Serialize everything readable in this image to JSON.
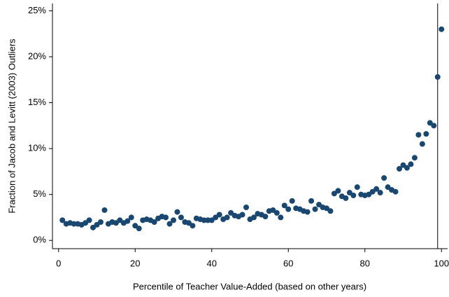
{
  "chart_data": {
    "type": "scatter",
    "x_label": "Percentile of Teacher Value-Added (based on other years)",
    "y_label": "Fraction of Jacob and Levitt (2003) Outliers",
    "color": "#1a476f",
    "x": [
      1,
      2,
      3,
      4,
      5,
      6,
      7,
      8,
      9,
      10,
      11,
      12,
      13,
      14,
      15,
      16,
      17,
      18,
      19,
      20,
      21,
      22,
      23,
      24,
      25,
      26,
      27,
      28,
      29,
      30,
      31,
      32,
      33,
      34,
      35,
      36,
      37,
      38,
      39,
      40,
      41,
      42,
      43,
      44,
      45,
      46,
      47,
      48,
      49,
      50,
      51,
      52,
      53,
      54,
      55,
      56,
      57,
      58,
      59,
      60,
      61,
      62,
      63,
      64,
      65,
      66,
      67,
      68,
      69,
      70,
      71,
      72,
      73,
      74,
      75,
      76,
      77,
      78,
      79,
      80,
      81,
      82,
      83,
      84,
      85,
      86,
      87,
      88,
      89,
      90,
      91,
      92,
      93,
      94,
      95,
      96,
      97,
      98,
      99,
      100
    ],
    "values": [
      2.2,
      1.8,
      1.9,
      1.8,
      1.8,
      1.7,
      1.9,
      2.2,
      1.4,
      1.7,
      2.0,
      3.3,
      1.8,
      2.0,
      1.9,
      2.2,
      1.9,
      2.1,
      2.5,
      1.6,
      1.3,
      2.2,
      2.3,
      2.2,
      2.0,
      2.4,
      2.6,
      2.5,
      1.8,
      2.2,
      3.1,
      2.5,
      2.0,
      1.9,
      1.6,
      2.4,
      2.3,
      2.2,
      2.2,
      2.2,
      2.5,
      2.8,
      2.3,
      2.5,
      3.0,
      2.7,
      2.6,
      2.8,
      3.6,
      2.3,
      2.5,
      2.9,
      2.8,
      2.6,
      3.2,
      3.3,
      3.0,
      2.5,
      3.8,
      3.4,
      4.3,
      3.5,
      3.4,
      3.2,
      3.1,
      4.3,
      3.4,
      3.9,
      3.6,
      3.5,
      3.2,
      5.1,
      5.4,
      4.8,
      4.6,
      5.2,
      4.9,
      5.8,
      5.0,
      4.9,
      5.0,
      5.3,
      5.6,
      5.2,
      6.8,
      5.8,
      5.5,
      5.3,
      7.8,
      8.2,
      7.9,
      8.3,
      9.0,
      11.5,
      10.5,
      11.6,
      12.8,
      12.5,
      17.8,
      23.0
    ],
    "xline": 99,
    "xlim": [
      -1.6,
      101.6
    ],
    "ylim": [
      -0.9,
      25.8
    ],
    "xticks": [
      0,
      20,
      40,
      60,
      80,
      100
    ],
    "yticks": [
      {
        "value": 0,
        "label": "0%"
      },
      {
        "value": 5,
        "label": "5%"
      },
      {
        "value": 10,
        "label": "10%"
      },
      {
        "value": 15,
        "label": "15%"
      },
      {
        "value": 20,
        "label": "20%"
      },
      {
        "value": 25,
        "label": "25%"
      }
    ]
  }
}
